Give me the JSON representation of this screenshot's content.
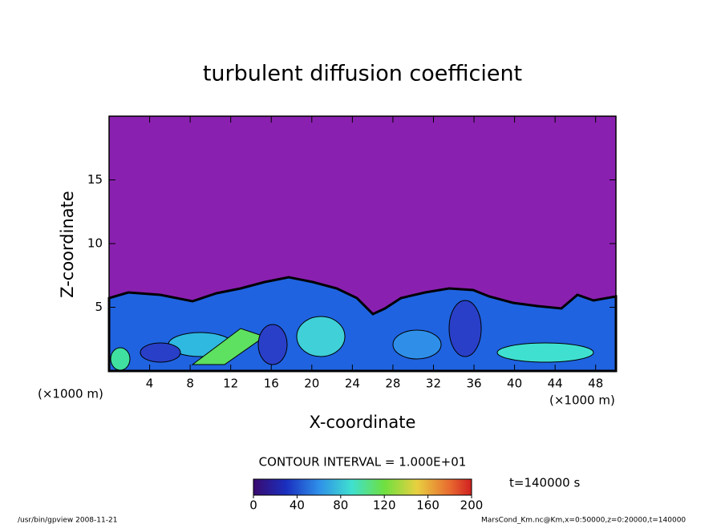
{
  "chart_data": {
    "type": "contour",
    "title": "turbulent diffusion coefficient",
    "x_label": "X-coordinate",
    "y_label": "Z-coordinate",
    "x_unit": "(×1000 m)",
    "xlim": [
      0,
      50
    ],
    "ylim": [
      0,
      20
    ],
    "xticks": [
      4,
      8,
      12,
      16,
      20,
      24,
      28,
      32,
      36,
      40,
      44,
      48
    ],
    "yticks": [
      5,
      10,
      15
    ],
    "contour_interval": "CONTOUR INTERVAL = 1.000E+01",
    "time_label": "t=140000 s",
    "colorbar": {
      "lim": [
        0,
        200
      ],
      "ticks": [
        0,
        40,
        80,
        120,
        160,
        200
      ]
    },
    "footer_left": "/usr/bin/gpview  2008-11-21",
    "footer_right": "MarsCond_Km.nc@Km,x=0:50000,z=0:20000,t=140000"
  }
}
